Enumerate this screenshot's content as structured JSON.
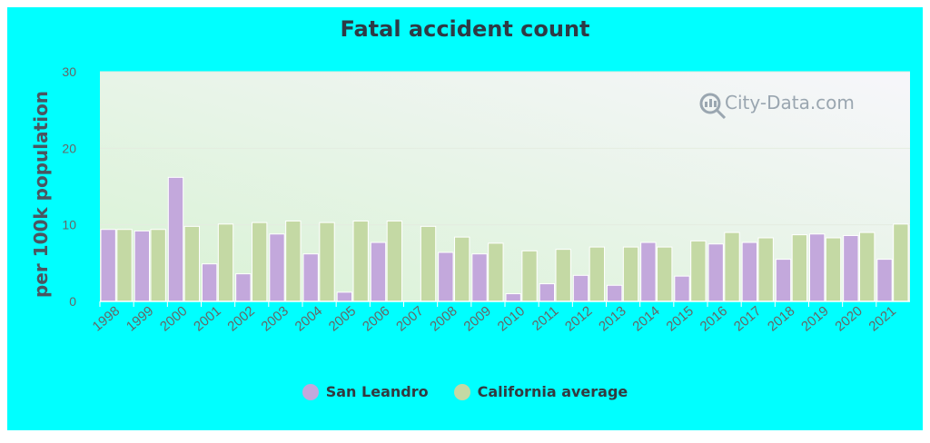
{
  "chart_data": {
    "type": "bar",
    "title": "Fatal accident count",
    "ylabel": "per 100k population",
    "xlabel": "",
    "ylim": [
      0,
      30
    ],
    "yticks": [
      0,
      10,
      20,
      30
    ],
    "grid": true,
    "legend_placement": "bottom",
    "categories": [
      "1998",
      "1999",
      "2000",
      "2001",
      "2002",
      "2003",
      "2004",
      "2005",
      "2006",
      "2007",
      "2008",
      "2009",
      "2010",
      "2011",
      "2012",
      "2013",
      "2014",
      "2015",
      "2016",
      "2017",
      "2018",
      "2019",
      "2020",
      "2021"
    ],
    "series": [
      {
        "name": "San Leandro",
        "color": "#c3a8dc",
        "values": [
          9.4,
          9.2,
          16.2,
          4.9,
          3.6,
          8.8,
          6.2,
          1.2,
          7.7,
          0,
          6.4,
          6.2,
          1.0,
          2.3,
          3.4,
          2.1,
          7.7,
          3.3,
          7.5,
          7.7,
          5.5,
          8.8,
          8.6,
          5.5
        ]
      },
      {
        "name": "California average",
        "color": "#c4d9a4",
        "values": [
          9.4,
          9.4,
          9.8,
          10.1,
          10.3,
          10.5,
          10.3,
          10.5,
          10.5,
          9.8,
          8.4,
          7.6,
          6.6,
          6.8,
          7.1,
          7.1,
          7.1,
          7.9,
          9.0,
          8.3,
          8.7,
          8.3,
          9.0,
          10.1
        ]
      }
    ]
  },
  "watermark": "City-Data.com"
}
